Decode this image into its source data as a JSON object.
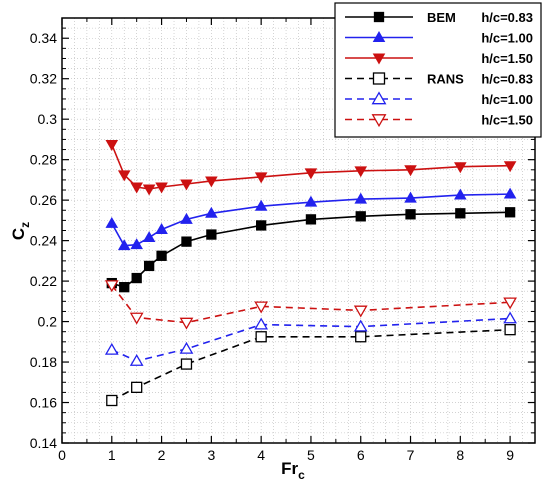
{
  "chart_data": {
    "type": "line",
    "title": "",
    "xlabel": {
      "main": "Fr",
      "sub": "c"
    },
    "ylabel": {
      "main": "C",
      "sub": "z"
    },
    "xlim": [
      0,
      9.5
    ],
    "ylim": [
      0.14,
      0.35
    ],
    "x_ticks": [
      "0",
      "1",
      "2",
      "3",
      "4",
      "5",
      "6",
      "7",
      "8",
      "9"
    ],
    "y_ticks": [
      "0.14",
      "0.16",
      "0.18",
      "0.2",
      "0.22",
      "0.24",
      "0.26",
      "0.28",
      "0.3",
      "0.32",
      "0.34"
    ],
    "grid": true,
    "legend_position": "top-right",
    "series": [
      {
        "group": "BEM",
        "name": "h/c=0.83",
        "color": "#000000",
        "dash": "solid",
        "marker": "square",
        "filled": true,
        "x": [
          1.0,
          1.25,
          1.5,
          1.75,
          2.0,
          2.5,
          3.0,
          4.0,
          5.0,
          6.0,
          7.0,
          8.0,
          9.0
        ],
        "y": [
          0.219,
          0.217,
          0.2215,
          0.2275,
          0.2325,
          0.2395,
          0.243,
          0.2475,
          0.2505,
          0.252,
          0.253,
          0.2535,
          0.254
        ]
      },
      {
        "group": "",
        "name": "h/c=1.00",
        "color": "#2222ee",
        "dash": "solid",
        "marker": "triangle-up",
        "filled": true,
        "x": [
          1.0,
          1.25,
          1.5,
          1.75,
          2.0,
          2.5,
          3.0,
          4.0,
          5.0,
          6.0,
          7.0,
          8.0,
          9.0
        ],
        "y": [
          0.2485,
          0.2375,
          0.238,
          0.2415,
          0.2455,
          0.2505,
          0.2535,
          0.257,
          0.259,
          0.2605,
          0.261,
          0.2625,
          0.263
        ]
      },
      {
        "group": "",
        "name": "h/c=1.50",
        "color": "#cc1111",
        "dash": "solid",
        "marker": "triangle-down",
        "filled": true,
        "x": [
          1.0,
          1.25,
          1.5,
          1.75,
          2.0,
          2.5,
          3.0,
          4.0,
          5.0,
          6.0,
          7.0,
          8.0,
          9.0
        ],
        "y": [
          0.2875,
          0.2725,
          0.2665,
          0.2655,
          0.2665,
          0.268,
          0.2695,
          0.2715,
          0.2735,
          0.2745,
          0.275,
          0.2765,
          0.277
        ]
      },
      {
        "group": "RANS",
        "name": "h/c=0.83",
        "color": "#000000",
        "dash": "dashed",
        "marker": "square",
        "filled": false,
        "x": [
          1.0,
          1.5,
          2.5,
          4.0,
          6.0,
          9.0
        ],
        "y": [
          0.161,
          0.1675,
          0.179,
          0.1925,
          0.1925,
          0.196
        ]
      },
      {
        "group": "",
        "name": "h/c=1.00",
        "color": "#2222ee",
        "dash": "dashed",
        "marker": "triangle-up",
        "filled": false,
        "x": [
          1.0,
          1.5,
          2.5,
          4.0,
          6.0,
          9.0
        ],
        "y": [
          0.186,
          0.1805,
          0.1865,
          0.1985,
          0.1975,
          0.2015
        ]
      },
      {
        "group": "",
        "name": "h/c=1.50",
        "color": "#cc1111",
        "dash": "dashed",
        "marker": "triangle-down",
        "filled": false,
        "x": [
          1.0,
          1.5,
          2.5,
          4.0,
          6.0,
          9.0
        ],
        "y": [
          0.218,
          0.202,
          0.1995,
          0.2075,
          0.2055,
          0.2095
        ]
      }
    ]
  }
}
